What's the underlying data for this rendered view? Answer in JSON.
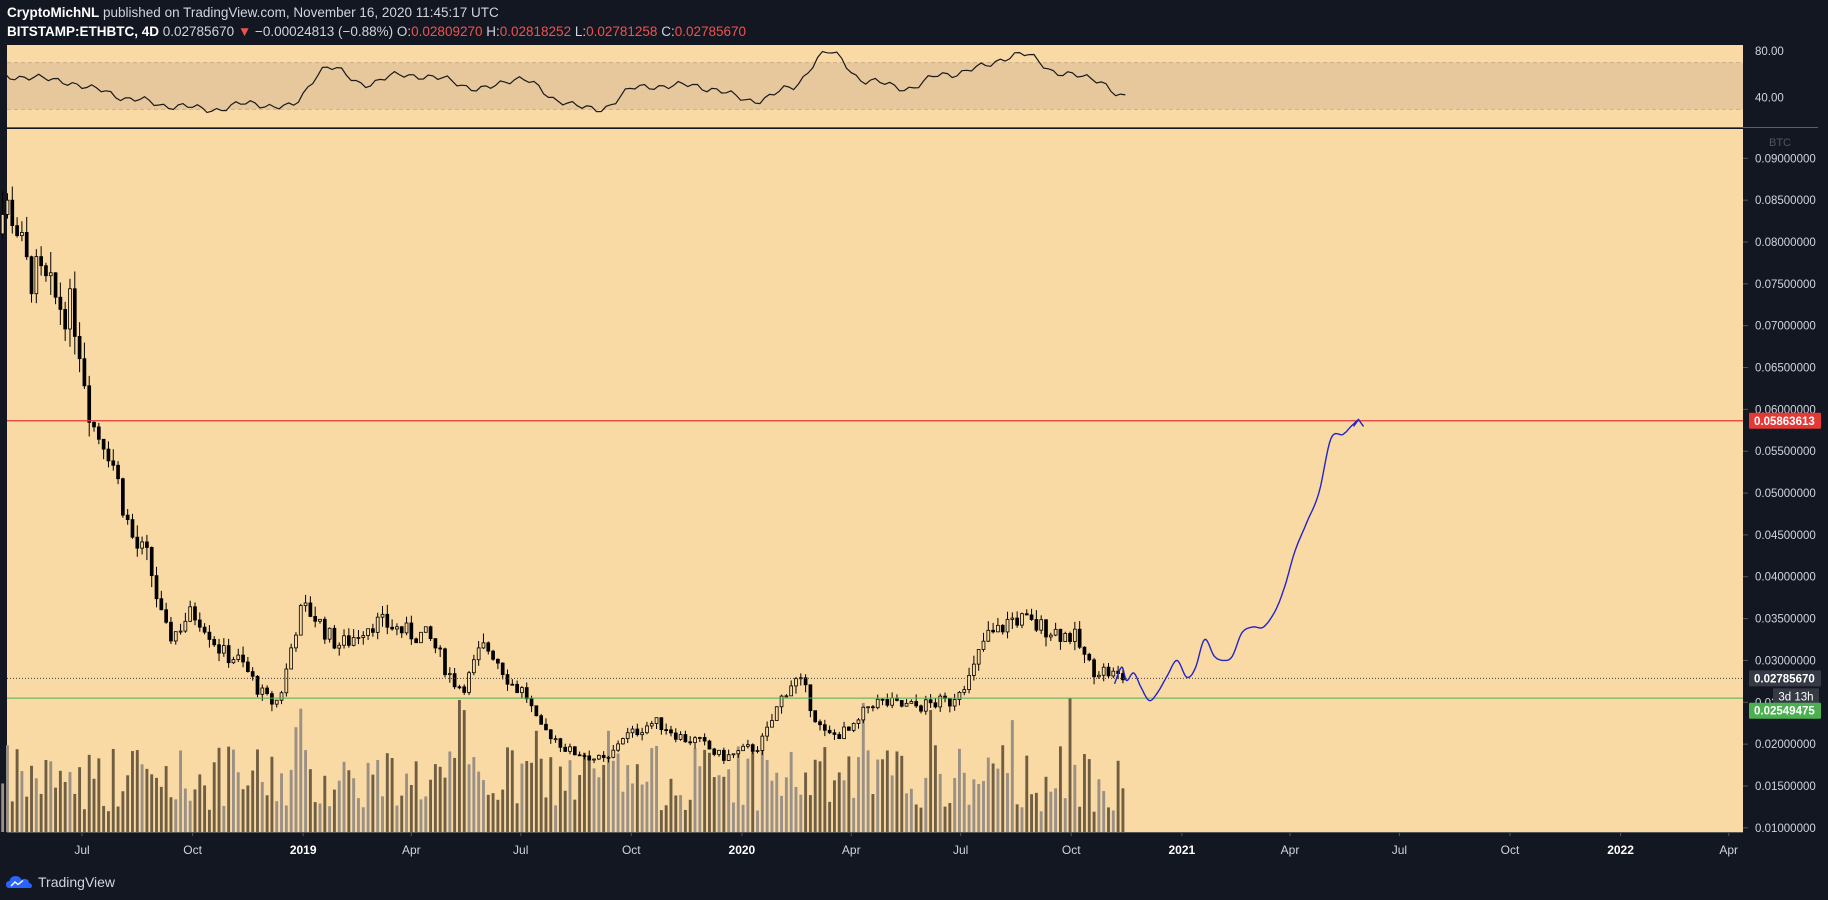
{
  "header": {
    "author": "CryptoMichNL",
    "published": "published on TradingView.com, November 16, 2020 11:45:17 UTC",
    "symbol": "BITSTAMP:ETHBTC, 4D",
    "last": "0.02785670",
    "change_arrow": "▼",
    "change": "−0.00024813 (−0.88%)",
    "o_label": "O:",
    "o_value": "0.02809270",
    "h_label": "H:",
    "h_value": "0.02818252",
    "l_label": "L:",
    "l_value": "0.02781258",
    "c_label": "C:",
    "c_value": "0.02785670"
  },
  "footer": {
    "brand": "TradingView",
    "logo_icon": "tradingview-cloud-icon"
  },
  "colors": {
    "background": "#131722",
    "pane": "#f9d9a4",
    "rsi_band": "#e6c89c",
    "resistance": "#e53935",
    "support": "#4caf50",
    "projection": "#2424c8",
    "candle": "#000000",
    "volume_down": "#6f5e42",
    "volume_up": "#9a9086"
  },
  "chart_data": [
    {
      "type": "line",
      "name": "RSI",
      "y_ticks": [
        "80.00",
        "40.00"
      ],
      "ylim": [
        15,
        85
      ],
      "band": [
        30,
        70
      ],
      "x_dates": [
        "2018-04-08",
        "2018-05-10",
        "2018-06-11",
        "2018-07-13",
        "2018-08-14",
        "2018-09-15",
        "2018-10-17",
        "2018-11-18",
        "2018-12-20",
        "2019-01-21",
        "2019-02-22",
        "2019-03-26",
        "2019-04-27",
        "2019-05-29",
        "2019-06-30",
        "2019-08-01",
        "2019-09-02",
        "2019-10-04",
        "2019-11-05",
        "2019-12-07",
        "2020-01-08",
        "2020-02-09",
        "2020-03-12",
        "2020-04-13",
        "2020-05-15",
        "2020-06-16",
        "2020-07-18",
        "2020-08-19",
        "2020-09-20",
        "2020-10-22",
        "2020-11-16"
      ],
      "values": [
        60,
        58,
        55,
        47,
        38,
        33,
        30,
        35,
        32,
        66,
        52,
        60,
        56,
        47,
        57,
        38,
        29,
        48,
        51,
        48,
        37,
        47,
        79,
        55,
        48,
        59,
        66,
        78,
        62,
        55,
        40
      ]
    },
    {
      "type": "candlestick",
      "symbol": "BITSTAMP:ETHBTC",
      "interval": "4D",
      "currency_label": "BTC",
      "ylim": [
        0.0095,
        0.0935
      ],
      "y_ticks": [
        "0.09000000",
        "0.08500000",
        "0.08000000",
        "0.07500000",
        "0.07000000",
        "0.06500000",
        "0.06000000",
        "0.05500000",
        "0.05000000",
        "0.04500000",
        "0.04000000",
        "0.03500000",
        "0.03000000",
        "0.02500000",
        "0.02000000",
        "0.01500000",
        "0.01000000"
      ],
      "x_ticks": [
        "Jul",
        "Oct",
        "2019",
        "Apr",
        "Jul",
        "Oct",
        "2020",
        "Apr",
        "Jul",
        "Oct",
        "2021",
        "Apr",
        "Jul",
        "Oct",
        "2022",
        "Apr"
      ],
      "x_tick_dates": [
        "2018-07-01",
        "2018-10-01",
        "2019-01-01",
        "2019-04-01",
        "2019-07-01",
        "2019-10-01",
        "2020-01-01",
        "2020-04-01",
        "2020-07-01",
        "2020-10-01",
        "2021-01-01",
        "2021-04-01",
        "2021-07-01",
        "2021-10-01",
        "2022-01-01",
        "2022-04-01"
      ],
      "key_points": {
        "dates": [
          "2018-04-06",
          "2018-05-01",
          "2018-05-20",
          "2018-06-20",
          "2018-07-15",
          "2018-08-20",
          "2018-09-12",
          "2018-10-01",
          "2018-11-01",
          "2018-12-08",
          "2019-01-02",
          "2019-02-01",
          "2019-03-01",
          "2019-04-10",
          "2019-05-13",
          "2019-06-01",
          "2019-07-01",
          "2019-07-20",
          "2019-08-15",
          "2019-09-10",
          "2019-09-25",
          "2019-10-20",
          "2019-11-20",
          "2019-12-18",
          "2020-01-10",
          "2020-02-15",
          "2020-03-13",
          "2020-03-30",
          "2020-04-20",
          "2020-05-20",
          "2020-06-20",
          "2020-07-05",
          "2020-07-25",
          "2020-08-15",
          "2020-09-05",
          "2020-09-30",
          "2020-10-20",
          "2020-11-16"
        ],
        "close": [
          0.08,
          0.084,
          0.076,
          0.072,
          0.057,
          0.043,
          0.033,
          0.0355,
          0.0305,
          0.025,
          0.036,
          0.032,
          0.0345,
          0.033,
          0.027,
          0.0315,
          0.0265,
          0.0215,
          0.019,
          0.018,
          0.021,
          0.0225,
          0.0205,
          0.0185,
          0.0195,
          0.0275,
          0.021,
          0.0215,
          0.025,
          0.0245,
          0.025,
          0.0275,
          0.033,
          0.035,
          0.034,
          0.033,
          0.029,
          0.0279
        ]
      },
      "last_price": "0.02785670",
      "countdown": "3d 13h",
      "levels": [
        {
          "name": "resistance",
          "value": "0.05863613",
          "price": 0.05863613
        },
        {
          "name": "support",
          "value": "0.02549475",
          "price": 0.02549475
        }
      ],
      "projection": {
        "dates": [
          "2020-11-06",
          "2020-11-12",
          "2020-11-16",
          "2020-11-22",
          "2020-11-28",
          "2020-12-05",
          "2020-12-12",
          "2020-12-20",
          "2020-12-28",
          "2021-01-05",
          "2021-01-12",
          "2021-01-20",
          "2021-01-28",
          "2021-02-05",
          "2021-02-12",
          "2021-02-20",
          "2021-03-01",
          "2021-03-10",
          "2021-03-20",
          "2021-03-28",
          "2021-04-05",
          "2021-04-15",
          "2021-04-25",
          "2021-05-05",
          "2021-05-15",
          "2021-05-22",
          "2021-05-28"
        ],
        "values": [
          0.0272,
          0.0292,
          0.0276,
          0.0285,
          0.0268,
          0.0252,
          0.0262,
          0.0282,
          0.03,
          0.028,
          0.029,
          0.0325,
          0.0305,
          0.03,
          0.0305,
          0.0333,
          0.034,
          0.034,
          0.036,
          0.039,
          0.043,
          0.0465,
          0.05,
          0.0565,
          0.057,
          0.058,
          0.0588
        ]
      },
      "volume_max": 1.0
    }
  ]
}
